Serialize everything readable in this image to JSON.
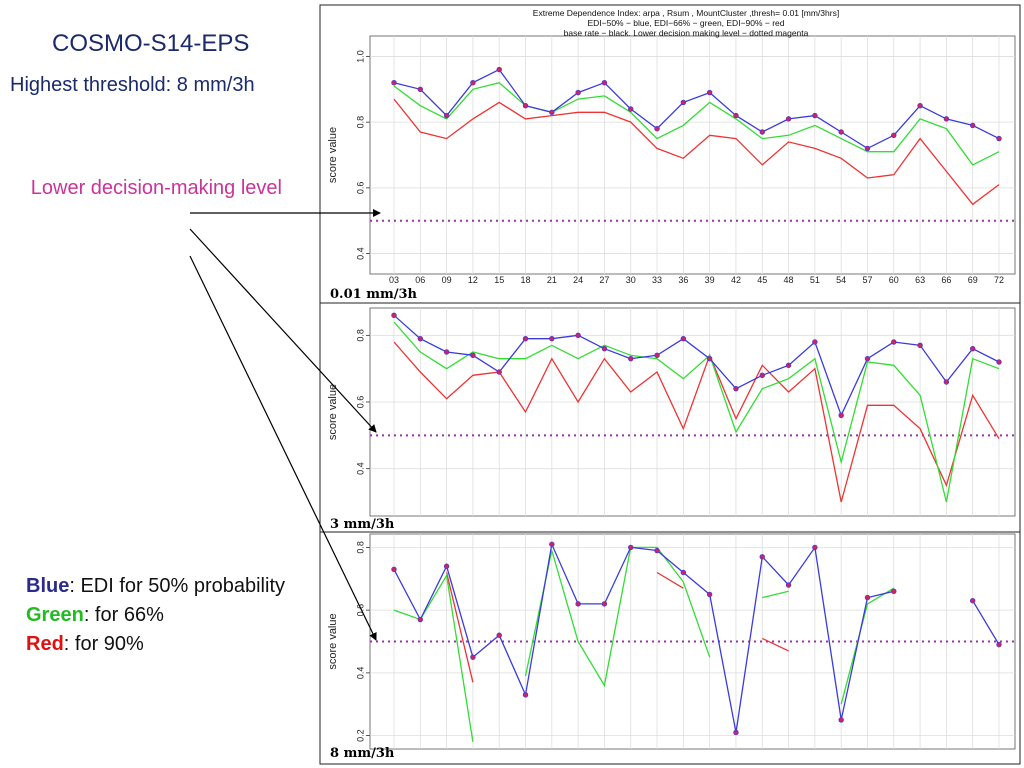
{
  "slide": {
    "title": "COSMO-S14-EPS",
    "subtitle": "Highest threshold: 8 mm/3h",
    "annotation": "Lower decision-making level",
    "legend": {
      "blue_label": "Blue",
      "blue_text": ": EDI for 50% probability",
      "green_label": "Green",
      "green_text": ": for 66%",
      "red_label": "Red",
      "red_text": ": for 90%"
    }
  },
  "colors": {
    "blue": "#3b3bdd",
    "green": "#33dd33",
    "red": "#ee3333",
    "magenta": "#9933aa",
    "marker": "#cc2266"
  },
  "chart_data": [
    {
      "type": "line",
      "title": "Extreme Dependence Index:  arpa , Rsum , MountCluster ,thresh=  0.01 [mm/3hrs]",
      "title_line2": "EDI−50% − blue, EDI−66% − green, EDI−90% − red",
      "title_line3": "base rate − black. Lower decision making level − dotted magenta",
      "panel_label": "0.01 mm/3h",
      "ylabel": "score value",
      "ylim": [
        0.35,
        1.05
      ],
      "yticks": [
        0.4,
        0.6,
        0.8,
        1.0
      ],
      "yticklabels": [
        "0.4",
        "0.6",
        "0.8",
        "1.0"
      ],
      "categories": [
        "03",
        "06",
        "09",
        "12",
        "15",
        "18",
        "21",
        "24",
        "27",
        "30",
        "33",
        "36",
        "39",
        "42",
        "45",
        "48",
        "51",
        "54",
        "57",
        "60",
        "63",
        "66",
        "69",
        "72"
      ],
      "decision_level": 0.5,
      "series": [
        {
          "name": "EDI-50%",
          "color": "blue",
          "values": [
            0.92,
            0.9,
            0.82,
            0.92,
            0.96,
            0.85,
            0.83,
            0.89,
            0.92,
            0.84,
            0.78,
            0.86,
            0.89,
            0.82,
            0.77,
            0.81,
            0.82,
            0.77,
            0.72,
            0.76,
            0.85,
            0.81,
            0.79,
            0.75
          ]
        },
        {
          "name": "EDI-66%",
          "color": "green",
          "values": [
            0.91,
            0.85,
            0.81,
            0.9,
            0.92,
            0.85,
            0.83,
            0.87,
            0.88,
            0.83,
            0.75,
            0.79,
            0.86,
            0.81,
            0.75,
            0.76,
            0.79,
            0.75,
            0.71,
            0.71,
            0.81,
            0.78,
            0.67,
            0.71
          ]
        },
        {
          "name": "EDI-90%",
          "color": "red",
          "values": [
            0.87,
            0.77,
            0.75,
            0.81,
            0.86,
            0.81,
            0.82,
            0.83,
            0.83,
            0.8,
            0.72,
            0.69,
            0.76,
            0.75,
            0.67,
            0.74,
            0.72,
            0.69,
            0.63,
            0.64,
            0.75,
            0.65,
            0.55,
            0.61
          ]
        }
      ]
    },
    {
      "type": "line",
      "panel_label": "3 mm/3h",
      "ylabel": "score value",
      "ylim": [
        0.27,
        0.87
      ],
      "yticks": [
        0.4,
        0.6,
        0.8
      ],
      "yticklabels": [
        "0.4",
        "0.6",
        "0.8"
      ],
      "categories": [
        "03",
        "06",
        "09",
        "12",
        "15",
        "18",
        "21",
        "24",
        "27",
        "30",
        "33",
        "36",
        "39",
        "42",
        "45",
        "48",
        "51",
        "54",
        "57",
        "60",
        "63",
        "66",
        "69",
        "72"
      ],
      "decision_level": 0.5,
      "series": [
        {
          "name": "EDI-50%",
          "color": "blue",
          "values": [
            0.86,
            0.79,
            0.75,
            0.74,
            0.69,
            0.79,
            0.79,
            0.8,
            0.76,
            0.73,
            0.74,
            0.79,
            0.73,
            0.64,
            0.68,
            0.71,
            0.78,
            0.56,
            0.73,
            0.78,
            0.77,
            0.66,
            0.76,
            0.72
          ]
        },
        {
          "name": "EDI-66%",
          "color": "green",
          "values": [
            0.84,
            0.75,
            0.7,
            0.75,
            0.73,
            0.73,
            0.77,
            0.73,
            0.77,
            0.74,
            0.73,
            0.67,
            0.74,
            0.51,
            0.64,
            0.67,
            0.73,
            0.42,
            0.72,
            0.71,
            0.62,
            0.3,
            0.73,
            0.7
          ]
        },
        {
          "name": "EDI-90%",
          "color": "red",
          "values": [
            0.78,
            0.69,
            0.61,
            0.68,
            0.69,
            0.57,
            0.73,
            0.6,
            0.73,
            0.63,
            0.69,
            0.52,
            0.74,
            0.55,
            0.71,
            0.63,
            0.7,
            0.3,
            0.59,
            0.59,
            0.52,
            0.35,
            0.62,
            0.49
          ]
        }
      ]
    },
    {
      "type": "line",
      "panel_label": "8 mm/3h",
      "ylabel": "score value",
      "ylim": [
        0.17,
        0.83
      ],
      "yticks": [
        0.2,
        0.4,
        0.6,
        0.8
      ],
      "yticklabels": [
        "0.2",
        "0.4",
        "0.6",
        "0.8"
      ],
      "categories": [
        "03",
        "06",
        "09",
        "12",
        "15",
        "18",
        "21",
        "24",
        "27",
        "30",
        "33",
        "36",
        "39",
        "42",
        "45",
        "48",
        "51",
        "54",
        "57",
        "60",
        "63",
        "66",
        "69",
        "72"
      ],
      "decision_level": 0.5,
      "series": [
        {
          "name": "EDI-50%",
          "color": "blue",
          "values": [
            0.73,
            0.57,
            0.74,
            0.45,
            0.52,
            0.33,
            0.81,
            0.62,
            0.62,
            0.8,
            0.79,
            0.72,
            0.65,
            0.21,
            0.77,
            0.68,
            0.8,
            0.25,
            0.64,
            0.66,
            null,
            null,
            0.63,
            0.49
          ]
        },
        {
          "name": "EDI-66%",
          "color": "green",
          "values": [
            0.6,
            0.57,
            0.71,
            0.18,
            null,
            0.39,
            0.79,
            0.5,
            0.36,
            0.8,
            0.8,
            0.69,
            0.45,
            null,
            0.64,
            0.66,
            null,
            0.3,
            0.62,
            0.67,
            null,
            null,
            null,
            null
          ]
        },
        {
          "name": "EDI-90%",
          "color": "red",
          "values": [
            null,
            null,
            0.72,
            0.37,
            null,
            null,
            null,
            null,
            null,
            null,
            0.72,
            0.67,
            null,
            null,
            0.51,
            0.47,
            null,
            null,
            null,
            null,
            null,
            null,
            null,
            null
          ]
        }
      ]
    }
  ]
}
